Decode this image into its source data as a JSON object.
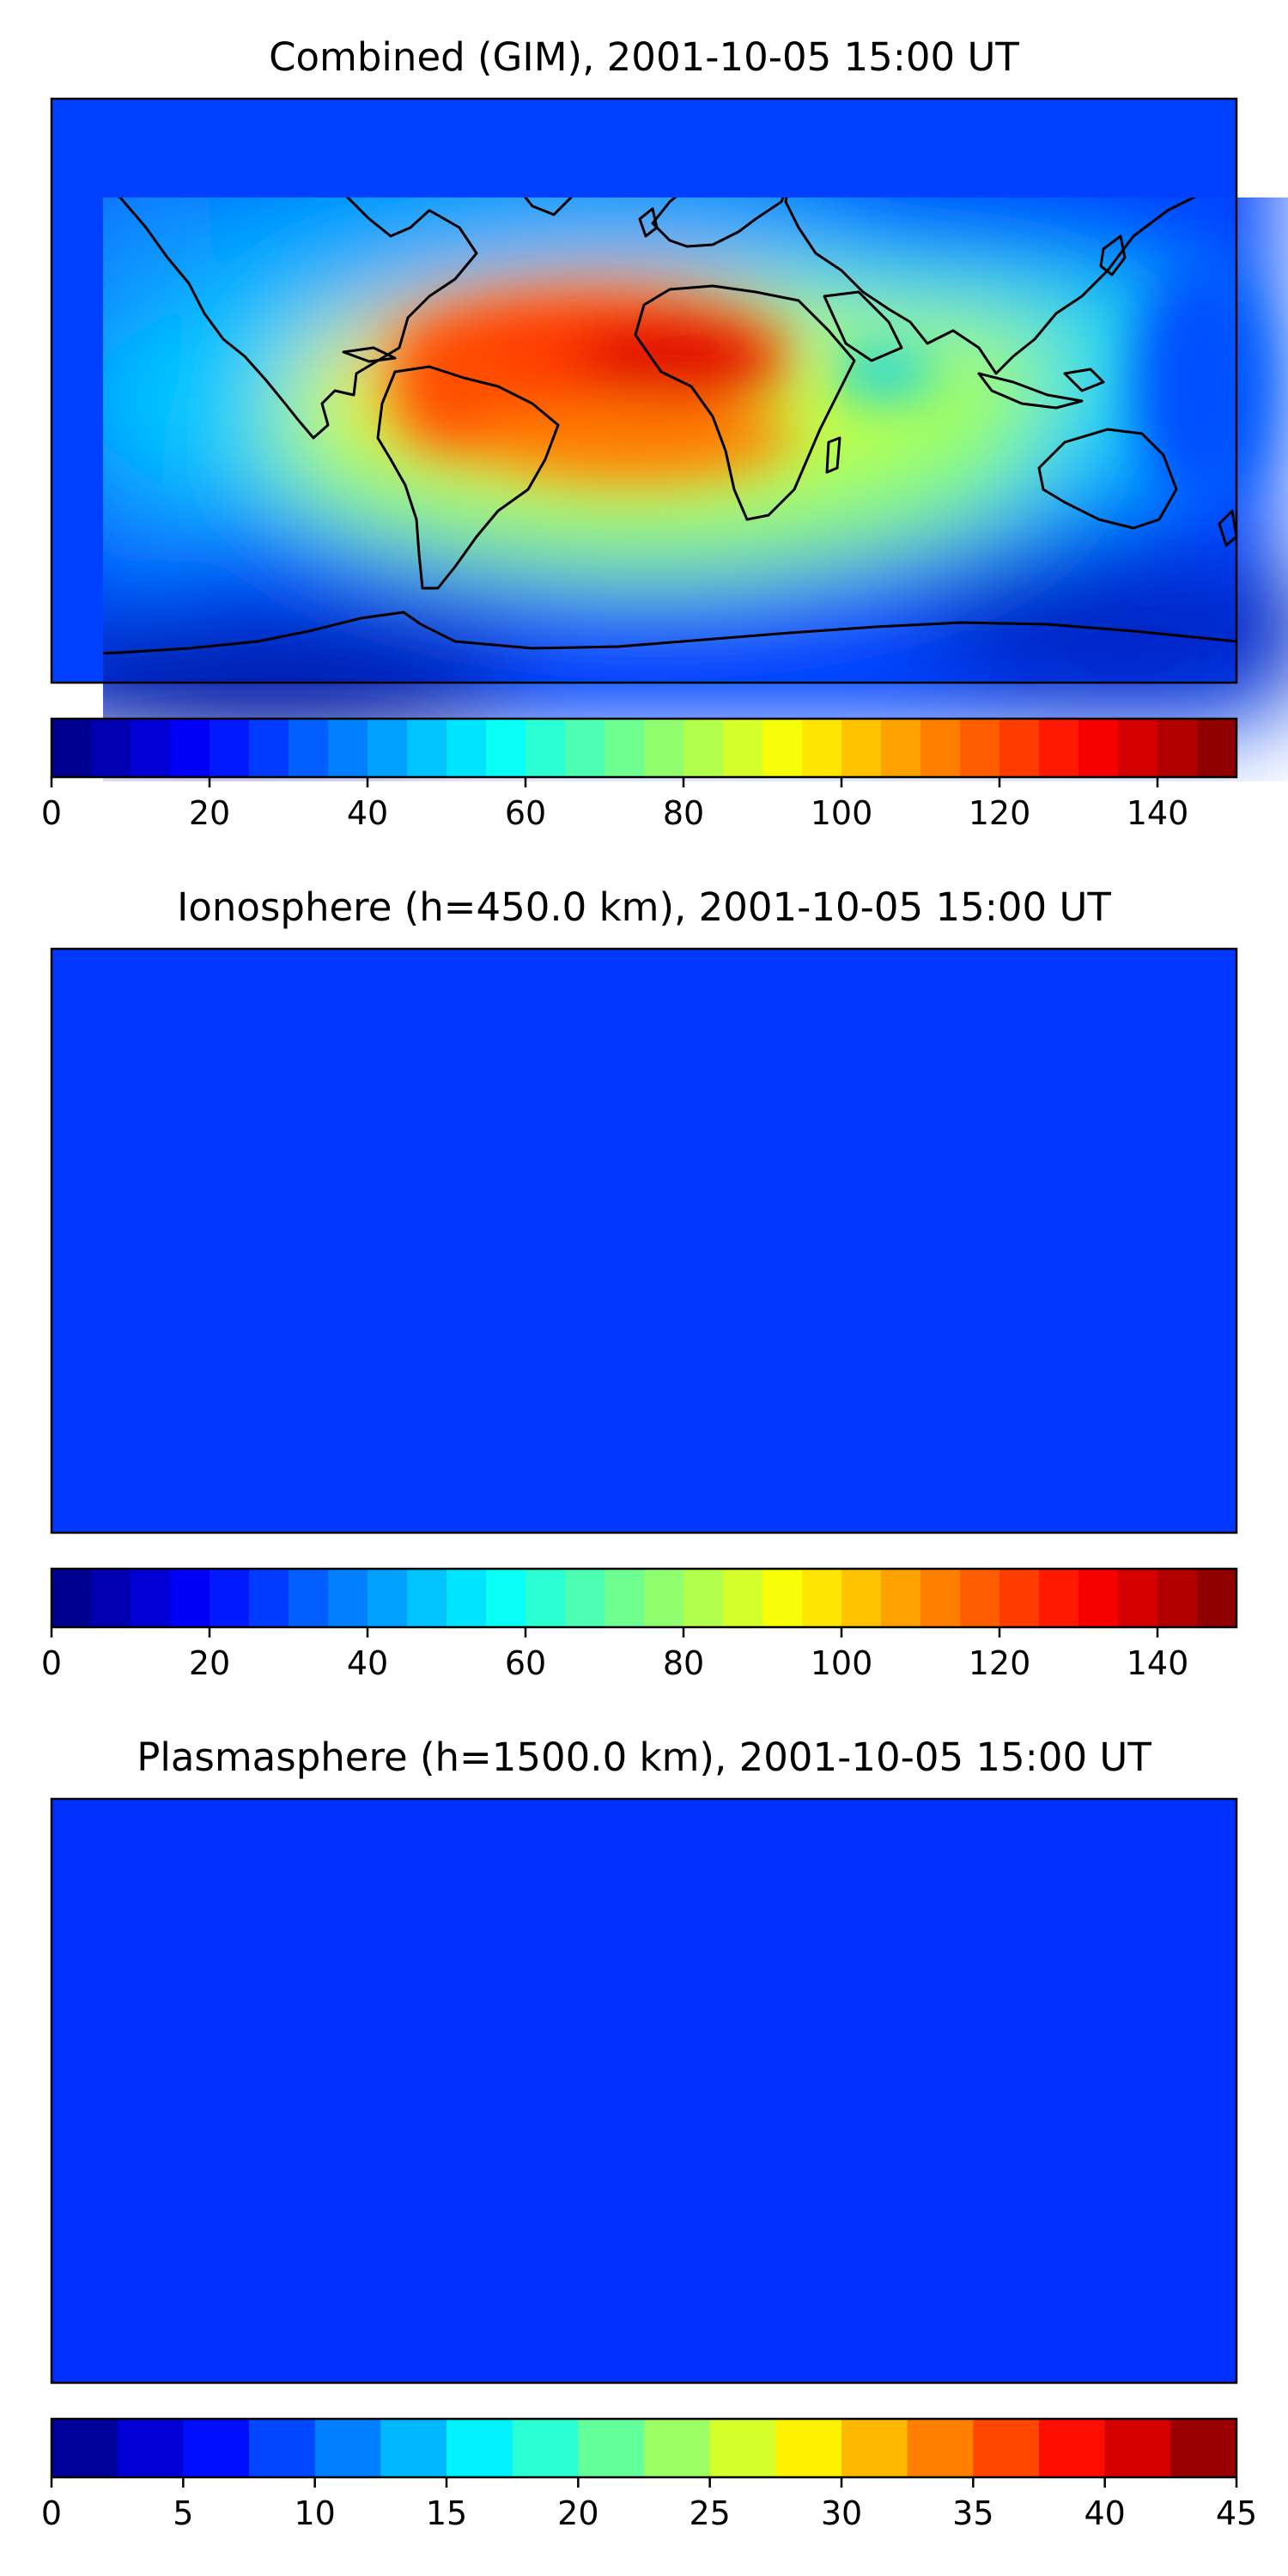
{
  "panels": [
    {
      "title": "Combined (GIM), 2001-10-05 15:00 UT",
      "colorbar": {
        "min": 0,
        "max": 150,
        "levels": 30,
        "ticks": [
          "0",
          "20",
          "40",
          "60",
          "80",
          "100",
          "120",
          "140"
        ],
        "tick_values": [
          0,
          20,
          40,
          60,
          80,
          100,
          120,
          140
        ]
      }
    },
    {
      "title": "Ionosphere  (h=450.0 km), 2001-10-05 15:00 UT",
      "colorbar": {
        "min": 0,
        "max": 150,
        "levels": 30,
        "ticks": [
          "0",
          "20",
          "40",
          "60",
          "80",
          "100",
          "120",
          "140"
        ],
        "tick_values": [
          0,
          20,
          40,
          60,
          80,
          100,
          120,
          140
        ]
      }
    },
    {
      "title": "Plasmasphere (h=1500.0 km), 2001-10-05 15:00 UT",
      "colorbar": {
        "min": 0,
        "max": 45,
        "levels": 18,
        "ticks": [
          "0",
          "5",
          "10",
          "15",
          "20",
          "25",
          "30",
          "35",
          "40",
          "45"
        ],
        "tick_values": [
          0,
          5,
          10,
          15,
          20,
          25,
          30,
          35,
          40,
          45
        ]
      }
    }
  ],
  "colors": {
    "jet_stops": [
      "#00007f",
      "#0000ff",
      "#007fff",
      "#00ffff",
      "#7fff7f",
      "#ffff00",
      "#ff7f00",
      "#ff0000",
      "#7f0000"
    ],
    "coastline": "#000000"
  }
}
